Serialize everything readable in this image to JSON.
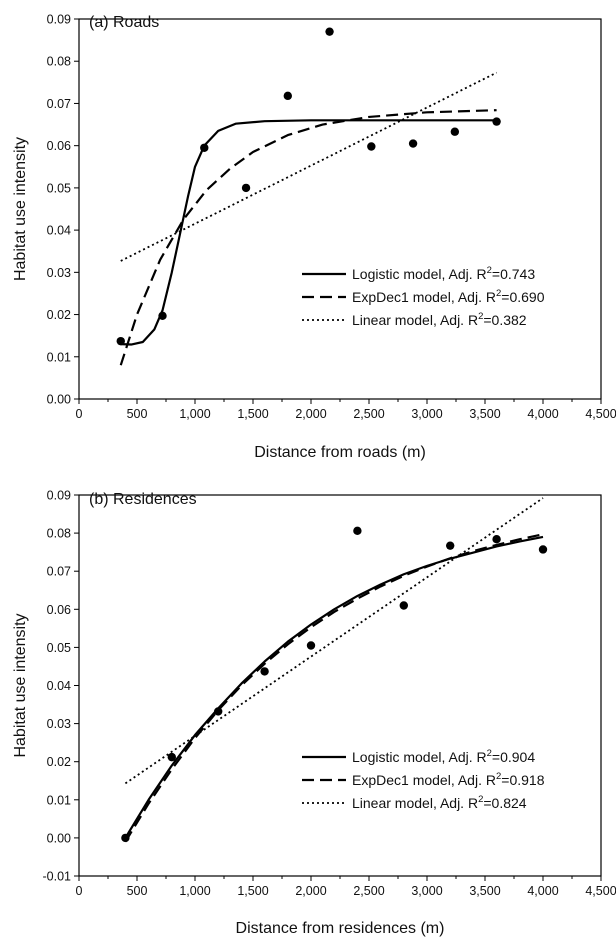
{
  "chart_data": [
    {
      "type": "scatter",
      "title": "(a) Roads",
      "xlabel": "Distance from roads (m)",
      "ylabel": "Habitat use intensity",
      "xlim": [
        0,
        4500
      ],
      "ylim": [
        0.0,
        0.09
      ],
      "x_ticks": [
        0,
        500,
        1000,
        1500,
        2000,
        2500,
        3000,
        3500,
        4000,
        4500
      ],
      "x_tick_labels": [
        "0",
        "500",
        "1,000",
        "1,500",
        "2,000",
        "2,500",
        "3,000",
        "3,500",
        "4,000",
        "4,500"
      ],
      "y_ticks": [
        0.0,
        0.01,
        0.02,
        0.03,
        0.04,
        0.05,
        0.06,
        0.07,
        0.08,
        0.09
      ],
      "y_tick_labels": [
        "0.00",
        "0.01",
        "0.02",
        "0.03",
        "0.04",
        "0.05",
        "0.06",
        "0.07",
        "0.08",
        "0.09"
      ],
      "points": {
        "x": [
          360,
          720,
          1080,
          1440,
          1800,
          2160,
          2520,
          2880,
          3240,
          3600
        ],
        "y": [
          0.0137,
          0.0197,
          0.0595,
          0.05,
          0.0718,
          0.087,
          0.0598,
          0.0605,
          0.0633,
          0.0657
        ]
      },
      "series": [
        {
          "name": "Logistic model, Adj. R",
          "r2": "=0.743",
          "style": "solid",
          "x": [
            360,
            450,
            550,
            650,
            720,
            800,
            870,
            940,
            1000,
            1080,
            1200,
            1350,
            1600,
            2000,
            2500,
            3000,
            3600
          ],
          "y": [
            0.013,
            0.0129,
            0.0135,
            0.0165,
            0.021,
            0.03,
            0.039,
            0.048,
            0.055,
            0.06,
            0.0635,
            0.0652,
            0.0658,
            0.066,
            0.066,
            0.066,
            0.066
          ]
        },
        {
          "name": "ExpDec1 model, Adj. R",
          "r2": "=0.690",
          "style": "dashed",
          "x": [
            360,
            500,
            700,
            900,
            1100,
            1300,
            1500,
            1800,
            2100,
            2500,
            3000,
            3600
          ],
          "y": [
            0.008,
            0.02,
            0.033,
            0.0425,
            0.0495,
            0.0545,
            0.0585,
            0.0625,
            0.065,
            0.0668,
            0.0679,
            0.0684
          ]
        },
        {
          "name": "Linear model, Adj. R",
          "r2": "=0.382",
          "style": "dotted",
          "x": [
            360,
            3600
          ],
          "y": [
            0.0327,
            0.0773
          ]
        }
      ],
      "legend_position": "bottom-right"
    },
    {
      "type": "scatter",
      "title": "(b) Residences",
      "xlabel": "Distance from residences (m)",
      "ylabel": "Habitat use intensity",
      "xlim": [
        0,
        4500
      ],
      "ylim": [
        -0.01,
        0.09
      ],
      "x_ticks": [
        0,
        500,
        1000,
        1500,
        2000,
        2500,
        3000,
        3500,
        4000,
        4500
      ],
      "x_tick_labels": [
        "0",
        "500",
        "1,000",
        "1,500",
        "2,000",
        "2,500",
        "3,000",
        "3,500",
        "4,000",
        "4,500"
      ],
      "y_ticks": [
        -0.01,
        0.0,
        0.01,
        0.02,
        0.03,
        0.04,
        0.05,
        0.06,
        0.07,
        0.08,
        0.09
      ],
      "y_tick_labels": [
        "-0.01",
        "0.00",
        "0.01",
        "0.02",
        "0.03",
        "0.04",
        "0.05",
        "0.06",
        "0.07",
        "0.08",
        "0.09"
      ],
      "points": {
        "x": [
          400,
          800,
          1200,
          1600,
          2000,
          2400,
          2800,
          3200,
          3600,
          4000
        ],
        "y": [
          0.0,
          0.0212,
          0.0332,
          0.0437,
          0.0505,
          0.0806,
          0.061,
          0.0767,
          0.0784,
          0.0757
        ]
      },
      "series": [
        {
          "name": "Logistic model, Adj. R",
          "r2": "=0.904",
          "style": "solid",
          "x": [
            400,
            600,
            800,
            1000,
            1200,
            1400,
            1600,
            1800,
            2000,
            2200,
            2400,
            2600,
            2800,
            3000,
            3200,
            3400,
            3600,
            3800,
            4000
          ],
          "y": [
            0.0,
            0.01,
            0.019,
            0.027,
            0.034,
            0.0405,
            0.0463,
            0.0515,
            0.056,
            0.06,
            0.0635,
            0.0665,
            0.0692,
            0.0714,
            0.0733,
            0.0749,
            0.0765,
            0.0778,
            0.079
          ]
        },
        {
          "name": "ExpDec1 model, Adj. R",
          "r2": "=0.918",
          "style": "dashed",
          "x": [
            400,
            600,
            800,
            1000,
            1200,
            1400,
            1600,
            1800,
            2000,
            2200,
            2400,
            2600,
            2800,
            3000,
            3200,
            3400,
            3600,
            3800,
            4000
          ],
          "y": [
            -0.001,
            0.009,
            0.018,
            0.0262,
            0.0335,
            0.04,
            0.0457,
            0.0508,
            0.0553,
            0.0593,
            0.0628,
            0.066,
            0.0688,
            0.0712,
            0.0734,
            0.0753,
            0.0769,
            0.0784,
            0.0797
          ]
        },
        {
          "name": "Linear model, Adj. R",
          "r2": "=0.824",
          "style": "dotted",
          "x": [
            400,
            4000
          ],
          "y": [
            0.0143,
            0.0892
          ]
        }
      ],
      "legend_position": "bottom-right"
    }
  ]
}
